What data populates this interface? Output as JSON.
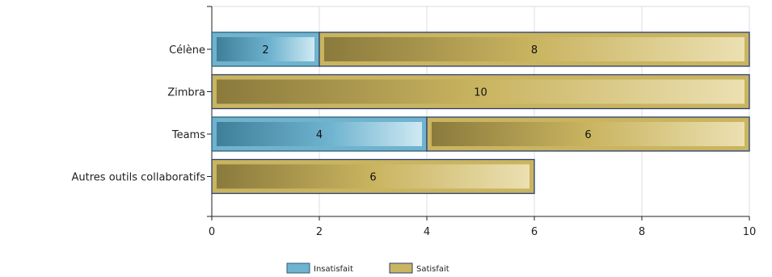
{
  "chart_data": {
    "type": "bar",
    "orientation": "horizontal",
    "stacked": true,
    "categories": [
      "Célène",
      "Zimbra",
      "Teams",
      "Autres outils collaboratifs"
    ],
    "series": [
      {
        "name": "Insatisfait",
        "values": [
          2,
          0,
          4,
          0
        ],
        "color": "#6fb3cf"
      },
      {
        "name": "Satisfait",
        "values": [
          8,
          10,
          6,
          6
        ],
        "color": "#c9b460"
      }
    ],
    "xlim": [
      0,
      10
    ],
    "xticks": [
      0,
      2,
      4,
      6,
      8,
      10
    ],
    "grid": true,
    "legend_position": "bottom-center",
    "title": "",
    "xlabel": "",
    "ylabel": ""
  }
}
